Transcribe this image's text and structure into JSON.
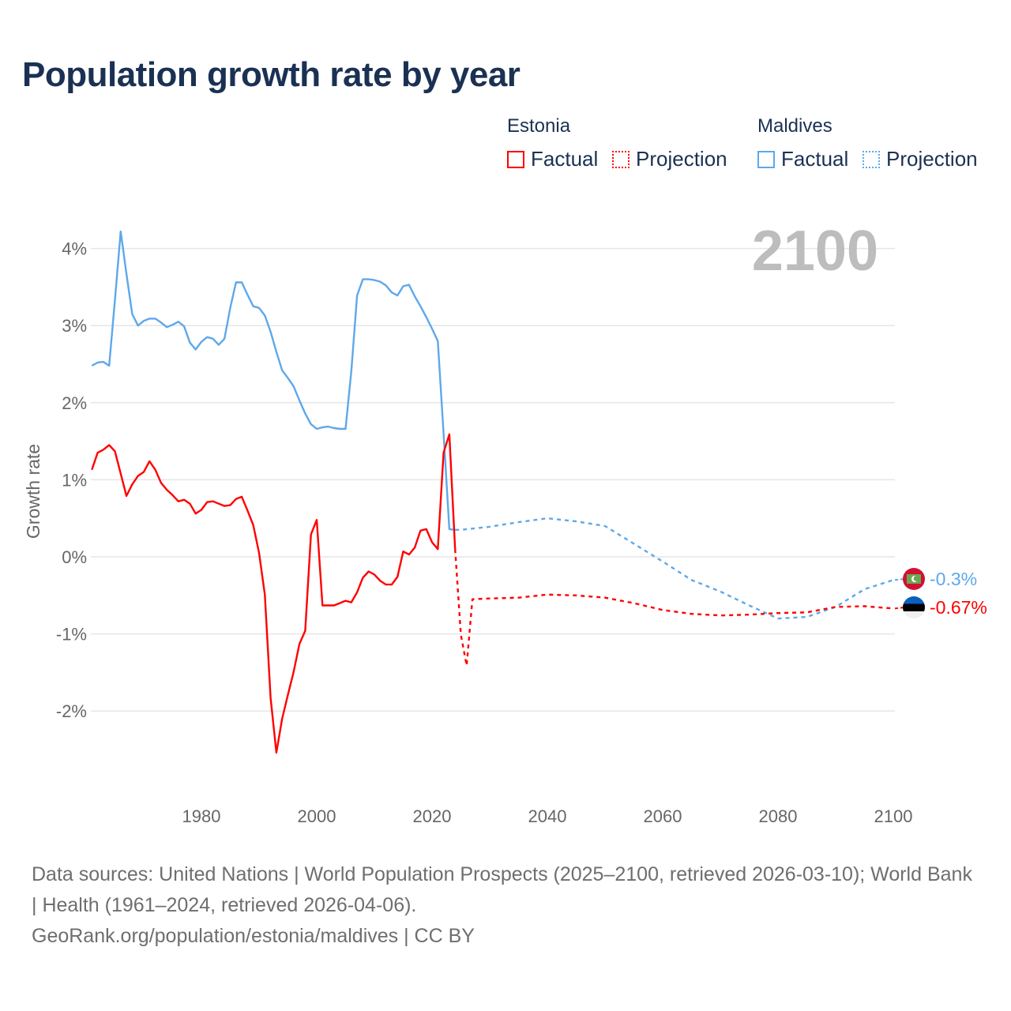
{
  "title": "Population growth rate by year",
  "legend": {
    "groups": [
      {
        "country": "Estonia",
        "color": "#ff0000",
        "factual": "Factual",
        "projection": "Projection"
      },
      {
        "country": "Maldives",
        "color": "#5ea8ea",
        "factual": "Factual",
        "projection": "Projection"
      }
    ]
  },
  "year_overlay": "2100",
  "source": {
    "line1": "Data sources: United Nations | World Population Prospects (2025–2100, retrieved 2026-03-10); World Bank | Health (1961–2024, retrieved 2026-04-06).",
    "line2": "GeoRank.org/population/estonia/maldives | CC BY"
  },
  "chart_data": {
    "type": "line",
    "title": "Population growth rate by year",
    "xlabel": "",
    "ylabel": "Growth rate",
    "xlim": [
      1961,
      2100
    ],
    "ylim": [
      -3,
      4.5
    ],
    "x_ticks": [
      1980,
      2000,
      2020,
      2040,
      2060,
      2080,
      2100
    ],
    "x_tick_labels": [
      "1980",
      "2000",
      "2020",
      "2040",
      "2060",
      "2080",
      "2100"
    ],
    "y_ticks": [
      4,
      3,
      2,
      1,
      0,
      -1,
      -2
    ],
    "y_tick_labels": [
      "4%",
      "3%",
      "2%",
      "1%",
      "0%",
      "-1%",
      "-2%"
    ],
    "grid": true,
    "legend_position": "top-right",
    "end_labels": [
      {
        "country": "Maldives",
        "text": "-0.3%",
        "value": -0.3,
        "color": "#5ea8ea"
      },
      {
        "country": "Estonia",
        "text": "-0.67%",
        "value": -0.67,
        "color": "#ff0000"
      }
    ],
    "series": [
      {
        "name": "Maldives Factual",
        "color": "#5ea8ea",
        "dashed": false,
        "x": [
          1961,
          1962,
          1963,
          1964,
          1965,
          1966,
          1967,
          1968,
          1969,
          1970,
          1971,
          1972,
          1973,
          1974,
          1975,
          1976,
          1977,
          1978,
          1979,
          1980,
          1981,
          1982,
          1983,
          1984,
          1985,
          1986,
          1987,
          1988,
          1989,
          1990,
          1991,
          1992,
          1993,
          1994,
          1995,
          1996,
          1997,
          1998,
          1999,
          2000,
          2001,
          2002,
          2003,
          2004,
          2005,
          2006,
          2007,
          2008,
          2009,
          2010,
          2011,
          2012,
          2013,
          2014,
          2015,
          2016,
          2017,
          2018,
          2019,
          2020,
          2021,
          2022,
          2023,
          2024
        ],
        "y": [
          2.48,
          2.52,
          2.53,
          2.48,
          3.33,
          4.22,
          3.67,
          3.15,
          3.0,
          3.06,
          3.09,
          3.09,
          3.04,
          2.98,
          3.01,
          3.05,
          2.99,
          2.78,
          2.69,
          2.79,
          2.85,
          2.83,
          2.75,
          2.83,
          3.23,
          3.56,
          3.56,
          3.4,
          3.25,
          3.23,
          3.13,
          2.92,
          2.66,
          2.42,
          2.32,
          2.21,
          2.03,
          1.86,
          1.72,
          1.66,
          1.68,
          1.69,
          1.67,
          1.66,
          1.66,
          2.41,
          3.39,
          3.6,
          3.6,
          3.59,
          3.57,
          3.52,
          3.43,
          3.39,
          3.51,
          3.53,
          3.38,
          3.25,
          3.11,
          2.96,
          2.8,
          1.6,
          0.36,
          0.35
        ]
      },
      {
        "name": "Maldives Projection",
        "color": "#5ea8ea",
        "dashed": true,
        "x": [
          2024,
          2025,
          2030,
          2035,
          2040,
          2045,
          2050,
          2055,
          2060,
          2065,
          2070,
          2075,
          2080,
          2085,
          2090,
          2095,
          2100
        ],
        "y": [
          0.35,
          0.35,
          0.39,
          0.45,
          0.5,
          0.46,
          0.4,
          0.17,
          -0.06,
          -0.3,
          -0.45,
          -0.63,
          -0.8,
          -0.78,
          -0.65,
          -0.42,
          -0.3
        ]
      },
      {
        "name": "Estonia Factual",
        "color": "#ff0000",
        "dashed": false,
        "x": [
          1961,
          1962,
          1963,
          1964,
          1965,
          1966,
          1967,
          1968,
          1969,
          1970,
          1971,
          1972,
          1973,
          1974,
          1975,
          1976,
          1977,
          1978,
          1979,
          1980,
          1981,
          1982,
          1983,
          1984,
          1985,
          1986,
          1987,
          1988,
          1989,
          1990,
          1991,
          1992,
          1993,
          1994,
          1995,
          1996,
          1997,
          1998,
          1999,
          2000,
          2001,
          2002,
          2003,
          2004,
          2005,
          2006,
          2007,
          2008,
          2009,
          2010,
          2011,
          2012,
          2013,
          2014,
          2015,
          2016,
          2017,
          2018,
          2019,
          2020,
          2021,
          2022,
          2023,
          2024
        ],
        "y": [
          1.13,
          1.35,
          1.39,
          1.45,
          1.37,
          1.08,
          0.79,
          0.94,
          1.05,
          1.1,
          1.24,
          1.13,
          0.96,
          0.87,
          0.8,
          0.72,
          0.74,
          0.69,
          0.56,
          0.61,
          0.71,
          0.72,
          0.69,
          0.66,
          0.67,
          0.75,
          0.78,
          0.6,
          0.41,
          0.05,
          -0.49,
          -1.83,
          -2.54,
          -2.1,
          -1.79,
          -1.49,
          -1.13,
          -0.96,
          0.29,
          0.48,
          -0.63,
          -0.63,
          -0.63,
          -0.6,
          -0.57,
          -0.59,
          -0.46,
          -0.27,
          -0.19,
          -0.23,
          -0.31,
          -0.36,
          -0.36,
          -0.26,
          0.07,
          0.03,
          0.12,
          0.34,
          0.36,
          0.19,
          0.1,
          1.35,
          1.59,
          0.1
        ]
      },
      {
        "name": "Estonia Projection",
        "color": "#ff0000",
        "dashed": true,
        "x": [
          2024,
          2025,
          2026,
          2027,
          2030,
          2035,
          2040,
          2045,
          2050,
          2055,
          2060,
          2065,
          2070,
          2075,
          2080,
          2085,
          2090,
          2095,
          2100
        ],
        "y": [
          0.1,
          -1.01,
          -1.41,
          -0.55,
          -0.54,
          -0.53,
          -0.49,
          -0.5,
          -0.53,
          -0.6,
          -0.69,
          -0.74,
          -0.76,
          -0.75,
          -0.73,
          -0.72,
          -0.65,
          -0.64,
          -0.67
        ]
      }
    ]
  }
}
